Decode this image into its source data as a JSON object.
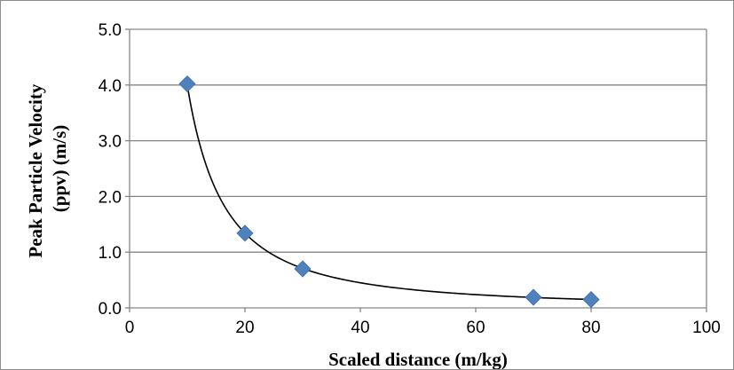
{
  "chart_data": {
    "type": "scatter",
    "xlabel": "Scaled distance (m/kg)",
    "ylabel_lines": [
      "Peak Particle Velocity",
      "(ppv) (m/s)"
    ],
    "xlim": [
      0,
      100
    ],
    "ylim": [
      0,
      5
    ],
    "x_ticks": [
      0,
      20,
      40,
      60,
      80,
      100
    ],
    "y_ticks": [
      "0.0",
      "1.0",
      "2.0",
      "3.0",
      "4.0",
      "5.0"
    ],
    "grid": "horizontal",
    "legend": "none",
    "marker": "diamond",
    "marker_color": "#4f81bd",
    "trendline": {
      "type": "power",
      "x_range": [
        10,
        80
      ],
      "color": "#000000"
    },
    "points": [
      {
        "x": 10,
        "y": 4.02
      },
      {
        "x": 20,
        "y": 1.34
      },
      {
        "x": 30,
        "y": 0.7
      },
      {
        "x": 70,
        "y": 0.19
      },
      {
        "x": 80,
        "y": 0.15
      }
    ]
  }
}
